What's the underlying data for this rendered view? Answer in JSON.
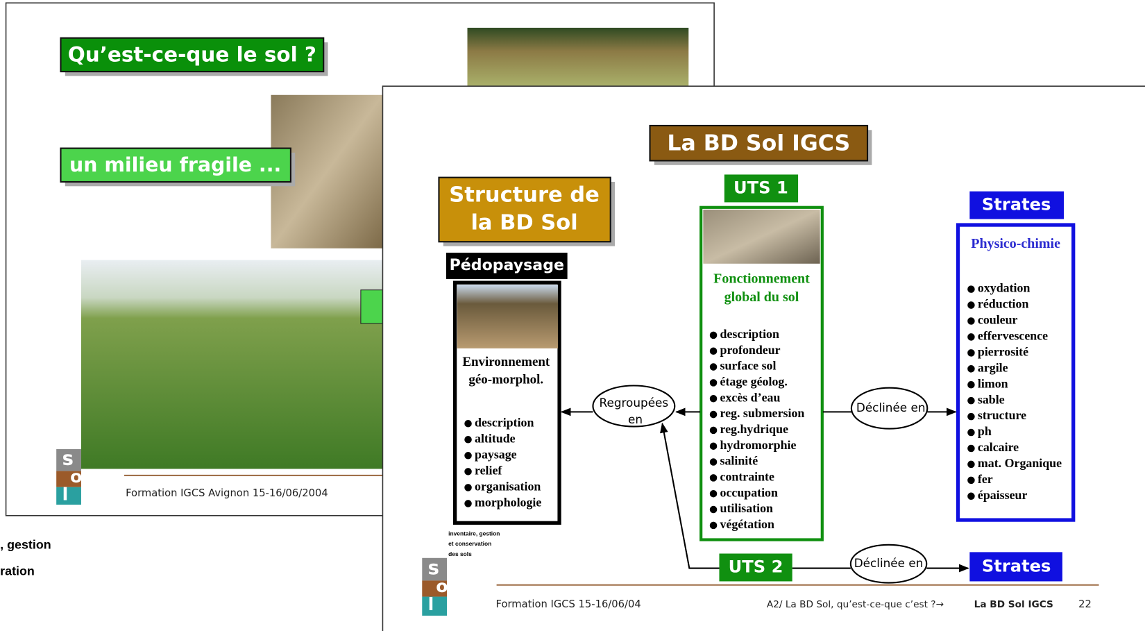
{
  "back_slide": {
    "title": "Qu’est-ce-que le sol ?",
    "subtitle": "un milieu fragile ...",
    "footer": "Formation IGCS  Avignon 15-16/06/2004",
    "logo": [
      "s",
      "o",
      "l"
    ]
  },
  "left_fragment": [
    ", gestion",
    "ration"
  ],
  "front_slide": {
    "title": "La BD Sol IGCS",
    "structure": [
      "Structure de",
      "la BD Sol"
    ],
    "pedopaysage": {
      "label": "Pédopaysage",
      "heading": [
        "Environnement",
        "géo-morphol."
      ],
      "items": [
        "description",
        "altitude",
        "paysage",
        "relief",
        "organisation",
        "morphologie"
      ]
    },
    "uts1": {
      "label": "UTS 1",
      "heading": [
        "Fonctionnement",
        "global du sol"
      ],
      "items": [
        "description",
        "profondeur",
        "surface sol",
        "étage géolog.",
        "excès d’eau",
        "reg. submersion",
        "reg.hydrique",
        "hydromorphie",
        "salinité",
        "contrainte",
        "occupation",
        "utilisation",
        "végétation"
      ]
    },
    "strates": {
      "label": "Strates",
      "heading": "Physico-chimie",
      "items": [
        "oxydation",
        "réduction",
        "couleur",
        "effervescence",
        "pierrosité",
        "argile",
        "limon",
        "sable",
        "structure",
        "ph",
        "calcaire",
        "mat. Organique",
        "fer",
        "épaisseur"
      ]
    },
    "regroupees": [
      "Regroupées",
      "en"
    ],
    "declinee_1": "Déclinée en",
    "declinee_2": "Déclinée en",
    "uts2": "UTS 2",
    "strates_2": "Strates",
    "logo_text": [
      "inventaire, gestion",
      "et conservation",
      "des sols"
    ],
    "logo": [
      "s",
      "o",
      "l"
    ],
    "footer_left": "Formation IGCS  15-16/06/04",
    "footer_mid": "A2/ La BD Sol, qu’est-ce-que c’est ?→",
    "footer_bold": "La BD Sol IGCS",
    "page": "22"
  }
}
